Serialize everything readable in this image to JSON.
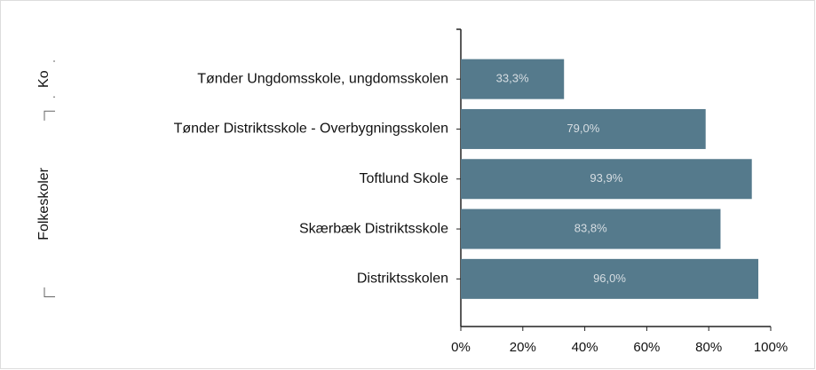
{
  "chart_data": {
    "type": "bar",
    "orientation": "horizontal",
    "categories": [
      "Tønder Ungdomsskole, ungdomsskolen",
      "Tønder Distriktsskole - Overbygningsskolen",
      "Toftlund Skole",
      "Skærbæk Distriktsskole",
      "Distriktsskolen"
    ],
    "category_groups": [
      "Ko",
      "Folkeskoler",
      "Folkeskoler",
      "Folkeskoler",
      "Folkeskoler"
    ],
    "values": [
      33.3,
      79.0,
      93.9,
      83.8,
      96.0
    ],
    "value_labels": [
      "33,3%",
      "79,0%",
      "93,9%",
      "83,8%",
      "96,0%"
    ],
    "color": "#557a8c",
    "xlim": [
      0,
      100
    ],
    "xticks": [
      {
        "value": 0,
        "label": "0%"
      },
      {
        "value": 20,
        "label": "20%"
      },
      {
        "value": 40,
        "label": "40%"
      },
      {
        "value": 60,
        "label": "60%"
      },
      {
        "value": 80,
        "label": "80%"
      },
      {
        "value": 100,
        "label": "100%"
      }
    ],
    "grid": false
  }
}
